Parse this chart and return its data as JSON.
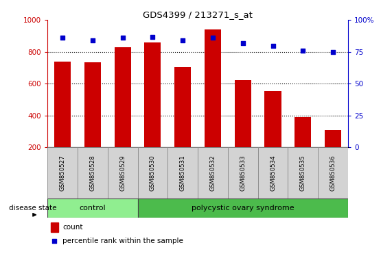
{
  "title": "GDS4399 / 213271_s_at",
  "samples": [
    "GSM850527",
    "GSM850528",
    "GSM850529",
    "GSM850530",
    "GSM850531",
    "GSM850532",
    "GSM850533",
    "GSM850534",
    "GSM850535",
    "GSM850536"
  ],
  "counts": [
    740,
    735,
    830,
    860,
    705,
    940,
    625,
    555,
    390,
    310
  ],
  "percentile_ranks": [
    86,
    84,
    86,
    87,
    84,
    86,
    82,
    80,
    76,
    75
  ],
  "count_ylim": [
    200,
    1000
  ],
  "count_yticks": [
    200,
    400,
    600,
    800,
    1000
  ],
  "percentile_ylim": [
    0,
    100
  ],
  "percentile_yticks": [
    0,
    25,
    50,
    75,
    100
  ],
  "bar_color": "#cc0000",
  "dot_color": "#0000cc",
  "bar_bottom": 200,
  "grid_values": [
    400,
    600,
    800
  ],
  "control_count": 3,
  "pcos_count": 7,
  "control_label": "control",
  "pcos_label": "polycystic ovary syndrome",
  "disease_state_label": "disease state",
  "legend_count": "count",
  "legend_percentile": "percentile rank within the sample",
  "tick_label_color_left": "#cc0000",
  "tick_label_color_right": "#0000cc",
  "control_color": "#90ee90",
  "pcos_color": "#4cbb4c",
  "sample_box_color": "#d3d3d3",
  "sample_box_edge": "#888888"
}
